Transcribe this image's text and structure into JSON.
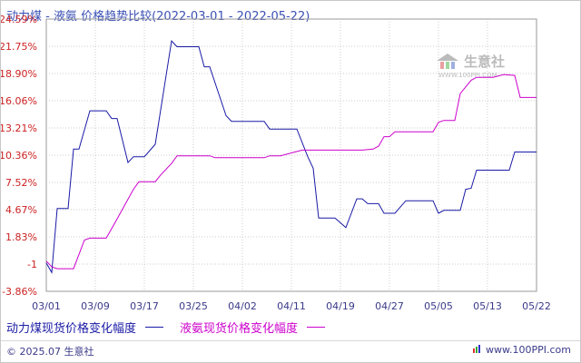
{
  "title": "动力煤 - 液氨 价格趋势比较(2022-03-01 - 2022-05-22)",
  "watermark": "生意社",
  "watermark_url": "WWW.100PPI.COM",
  "footer": {
    "copyright": "© 2025.07 生意社",
    "site": "www.100PPI.com"
  },
  "chart_data": {
    "type": "line",
    "title": "动力煤 - 液氨 价格趋势比较(2022-03-01 - 2022-05-22)",
    "xlabel": "",
    "ylabel": "",
    "x_tick_labels": [
      "03/01",
      "03/09",
      "03/17",
      "03/25",
      "04/02",
      "04/11",
      "04/19",
      "04/27",
      "05/05",
      "05/13",
      "05/22"
    ],
    "y_tick_labels": [
      "24.59%",
      "21.75%",
      "18.90%",
      "16.06%",
      "13.21%",
      "10.36%",
      "7.52%",
      "4.67%",
      "1.83%",
      "-1",
      "-3.86%"
    ],
    "ylim": [
      -3.86,
      24.59
    ],
    "grid": true,
    "legend_position": "bottom-left",
    "series": [
      {
        "name": "动力煤现货价格变化幅度",
        "color": "#1a1aa6",
        "points": [
          [
            0,
            -0.9
          ],
          [
            1,
            -1.9
          ],
          [
            2,
            4.8
          ],
          [
            3,
            4.8
          ],
          [
            4,
            4.8
          ],
          [
            5,
            11.0
          ],
          [
            6,
            11.0
          ],
          [
            8,
            15.0
          ],
          [
            11,
            15.0
          ],
          [
            12,
            14.2
          ],
          [
            13,
            14.2
          ],
          [
            15,
            9.6
          ],
          [
            16,
            10.2
          ],
          [
            18,
            10.2
          ],
          [
            20,
            11.5
          ],
          [
            23,
            22.3
          ],
          [
            24,
            21.7
          ],
          [
            28,
            21.7
          ],
          [
            29,
            19.6
          ],
          [
            30,
            19.6
          ],
          [
            33,
            14.5
          ],
          [
            34,
            13.9
          ],
          [
            40,
            13.9
          ],
          [
            41,
            13.1
          ],
          [
            46,
            13.1
          ],
          [
            48,
            10.2
          ],
          [
            49,
            9.0
          ],
          [
            50,
            3.8
          ],
          [
            53,
            3.8
          ],
          [
            55,
            2.8
          ],
          [
            57,
            5.8
          ],
          [
            58,
            5.8
          ],
          [
            59,
            5.3
          ],
          [
            61,
            5.3
          ],
          [
            62,
            4.3
          ],
          [
            64,
            4.3
          ],
          [
            66,
            5.6
          ],
          [
            71,
            5.6
          ],
          [
            72,
            4.3
          ],
          [
            73,
            4.6
          ],
          [
            76,
            4.6
          ],
          [
            77,
            6.8
          ],
          [
            78,
            6.9
          ],
          [
            79,
            8.8
          ],
          [
            85,
            8.8
          ],
          [
            86,
            10.7
          ],
          [
            90,
            10.7
          ]
        ]
      },
      {
        "name": "液氨现货价格变化幅度",
        "color": "#cc00cc",
        "points": [
          [
            0,
            -0.7
          ],
          [
            1,
            -1.3
          ],
          [
            2,
            -1.5
          ],
          [
            5,
            -1.5
          ],
          [
            7,
            1.5
          ],
          [
            8,
            1.7
          ],
          [
            11,
            1.7
          ],
          [
            13,
            3.7
          ],
          [
            16,
            6.8
          ],
          [
            17,
            7.6
          ],
          [
            20,
            7.6
          ],
          [
            21,
            8.3
          ],
          [
            23,
            9.5
          ],
          [
            24,
            10.3
          ],
          [
            30,
            10.3
          ],
          [
            31,
            10.1
          ],
          [
            40,
            10.1
          ],
          [
            41,
            10.3
          ],
          [
            43,
            10.3
          ],
          [
            45,
            10.6
          ],
          [
            47,
            10.9
          ],
          [
            58,
            10.9
          ],
          [
            60,
            11.0
          ],
          [
            61,
            11.3
          ],
          [
            62,
            12.3
          ],
          [
            63,
            12.3
          ],
          [
            64,
            12.8
          ],
          [
            71,
            12.8
          ],
          [
            72,
            13.8
          ],
          [
            73,
            14.0
          ],
          [
            75,
            14.0
          ],
          [
            76,
            16.8
          ],
          [
            78,
            18.2
          ],
          [
            79,
            18.5
          ],
          [
            82,
            18.5
          ],
          [
            84,
            18.8
          ],
          [
            86,
            18.7
          ],
          [
            87,
            16.4
          ],
          [
            90,
            16.4
          ]
        ]
      }
    ]
  }
}
